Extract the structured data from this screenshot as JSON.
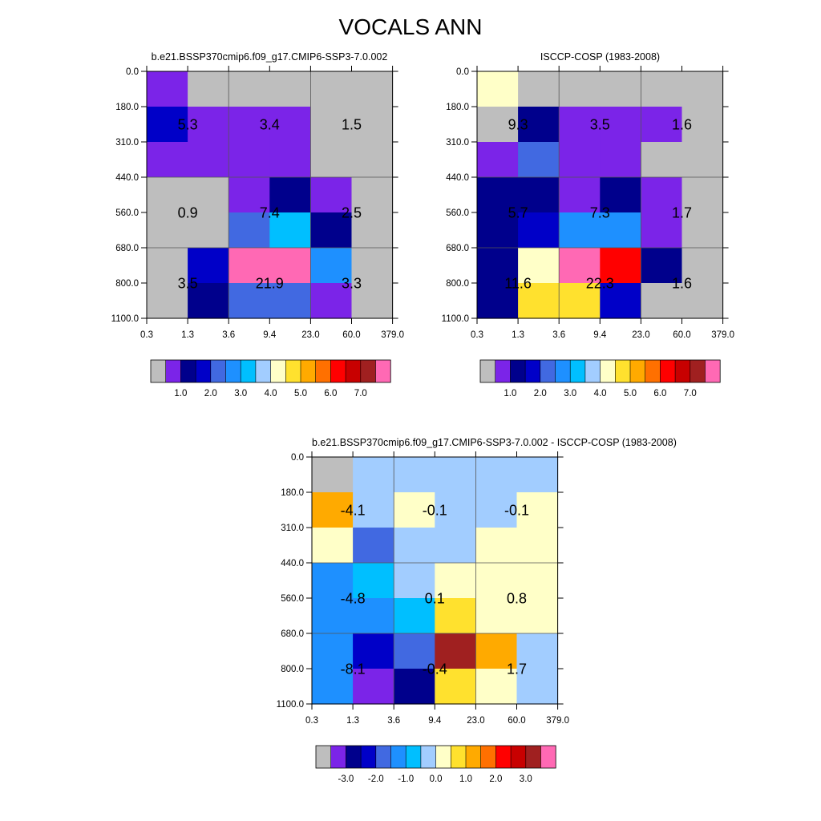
{
  "title": "VOCALS ANN",
  "chart_data": [
    {
      "type": "heatmap",
      "title": "b.e21.BSSP370cmip6.f09_g17.CMIP6-SSP3-7.0.002",
      "x_ticks": [
        "0.3",
        "1.3",
        "3.6",
        "9.4",
        "23.0",
        "60.0",
        "379.0"
      ],
      "y_ticks": [
        "0.0",
        "180.0",
        "310.0",
        "440.0",
        "560.0",
        "680.0",
        "800.0",
        "1100.0"
      ],
      "cells": [
        [
          "#7B24E8",
          "#BEBEBE",
          "#BEBEBE",
          "#BEBEBE",
          "#BEBEBE",
          "#BEBEBE"
        ],
        [
          "#0000C8",
          "#7B24E8",
          "#7B24E8",
          "#7B24E8",
          "#BEBEBE",
          "#BEBEBE"
        ],
        [
          "#7B24E8",
          "#7B24E8",
          "#7B24E8",
          "#7B24E8",
          "#BEBEBE",
          "#BEBEBE"
        ],
        [
          "#BEBEBE",
          "#BEBEBE",
          "#7B24E8",
          "#00008C",
          "#7B24E8",
          "#BEBEBE"
        ],
        [
          "#BEBEBE",
          "#BEBEBE",
          "#4169E1",
          "#00BFFF",
          "#00008C",
          "#BEBEBE"
        ],
        [
          "#BEBEBE",
          "#0000C8",
          "#FF69B4",
          "#FF69B4",
          "#1E90FF",
          "#BEBEBE"
        ],
        [
          "#BEBEBE",
          "#00008C",
          "#4169E1",
          "#4169E1",
          "#7B24E8",
          "#BEBEBE"
        ]
      ],
      "box_values": [
        [
          "",
          "",
          ""
        ],
        [
          "5.3",
          "3.4",
          "1.5"
        ],
        [
          "0.9",
          "7.4",
          "2.5"
        ],
        [
          "3.5",
          "21.9",
          "3.3"
        ]
      ],
      "colorbar": {
        "colors": [
          "#BEBEBE",
          "#7B24E8",
          "#00008C",
          "#0000C8",
          "#4169E1",
          "#1E90FF",
          "#00BFFF",
          "#A2CDFF",
          "#FFFFC8",
          "#FFE12E",
          "#FFAA00",
          "#FF7000",
          "#FF0000",
          "#C80000",
          "#A02020",
          "#FF69B4"
        ],
        "labels": [
          "1.0",
          "2.0",
          "3.0",
          "4.0",
          "5.0",
          "6.0",
          "7.0"
        ]
      }
    },
    {
      "type": "heatmap",
      "title": "ISCCP-COSP (1983-2008)",
      "x_ticks": [
        "0.3",
        "1.3",
        "3.6",
        "9.4",
        "23.0",
        "60.0",
        "379.0"
      ],
      "y_ticks": [
        "0.0",
        "180.0",
        "310.0",
        "440.0",
        "560.0",
        "680.0",
        "800.0",
        "1100.0"
      ],
      "cells": [
        [
          "#FFFFC8",
          "#BEBEBE",
          "#BEBEBE",
          "#BEBEBE",
          "#BEBEBE",
          "#BEBEBE"
        ],
        [
          "#BEBEBE",
          "#00008C",
          "#7B24E8",
          "#7B24E8",
          "#7B24E8",
          "#BEBEBE"
        ],
        [
          "#7B24E8",
          "#4169E1",
          "#7B24E8",
          "#7B24E8",
          "#BEBEBE",
          "#BEBEBE"
        ],
        [
          "#00008C",
          "#00008C",
          "#7B24E8",
          "#00008C",
          "#7B24E8",
          "#BEBEBE"
        ],
        [
          "#00008C",
          "#0000C8",
          "#1E90FF",
          "#1E90FF",
          "#7B24E8",
          "#BEBEBE"
        ],
        [
          "#00008C",
          "#FFFFC8",
          "#FF69B4",
          "#FF0000",
          "#00008C",
          "#BEBEBE"
        ],
        [
          "#00008C",
          "#FFE12E",
          "#FFE12E",
          "#0000C8",
          "#BEBEBE",
          "#BEBEBE"
        ]
      ],
      "box_values": [
        [
          "",
          "",
          ""
        ],
        [
          "9.3",
          "3.5",
          "1.6"
        ],
        [
          "5.7",
          "7.3",
          "1.7"
        ],
        [
          "11.6",
          "22.3",
          "1.6"
        ]
      ],
      "colorbar": {
        "colors": [
          "#BEBEBE",
          "#7B24E8",
          "#00008C",
          "#0000C8",
          "#4169E1",
          "#1E90FF",
          "#00BFFF",
          "#A2CDFF",
          "#FFFFC8",
          "#FFE12E",
          "#FFAA00",
          "#FF7000",
          "#FF0000",
          "#C80000",
          "#A02020",
          "#FF69B4"
        ],
        "labels": [
          "1.0",
          "2.0",
          "3.0",
          "4.0",
          "5.0",
          "6.0",
          "7.0"
        ]
      }
    },
    {
      "type": "heatmap",
      "title": "b.e21.BSSP370cmip6.f09_g17.CMIP6-SSP3-7.0.002 - ISCCP-COSP (1983-2008)",
      "x_ticks": [
        "0.3",
        "1.3",
        "3.6",
        "9.4",
        "23.0",
        "60.0",
        "379.0"
      ],
      "y_ticks": [
        "0.0",
        "180.0",
        "310.0",
        "440.0",
        "560.0",
        "680.0",
        "800.0",
        "1100.0"
      ],
      "cells": [
        [
          "#BEBEBE",
          "#A2CDFF",
          "#A2CDFF",
          "#A2CDFF",
          "#A2CDFF",
          "#A2CDFF"
        ],
        [
          "#FFAA00",
          "#A2CDFF",
          "#FFFFC8",
          "#A2CDFF",
          "#A2CDFF",
          "#FFFFC8"
        ],
        [
          "#FFFFC8",
          "#4169E1",
          "#A2CDFF",
          "#A2CDFF",
          "#FFFFC8",
          "#FFFFC8"
        ],
        [
          "#1E90FF",
          "#00BFFF",
          "#A2CDFF",
          "#FFFFC8",
          "#FFFFC8",
          "#FFFFC8"
        ],
        [
          "#1E90FF",
          "#1E90FF",
          "#00BFFF",
          "#FFE12E",
          "#FFFFC8",
          "#FFFFC8"
        ],
        [
          "#1E90FF",
          "#0000C8",
          "#4169E1",
          "#A02020",
          "#FFAA00",
          "#A2CDFF"
        ],
        [
          "#1E90FF",
          "#7B24E8",
          "#00008C",
          "#FFE12E",
          "#FFFFC8",
          "#A2CDFF"
        ]
      ],
      "box_values": [
        [
          "",
          "",
          ""
        ],
        [
          "-4.1",
          "-0.1",
          "-0.1"
        ],
        [
          "-4.8",
          "0.1",
          "0.8"
        ],
        [
          "-8.1",
          "-0.4",
          "1.7"
        ]
      ],
      "colorbar": {
        "colors": [
          "#BEBEBE",
          "#7B24E8",
          "#00008C",
          "#0000C8",
          "#4169E1",
          "#1E90FF",
          "#00BFFF",
          "#A2CDFF",
          "#FFFFC8",
          "#FFE12E",
          "#FFAA00",
          "#FF7000",
          "#FF0000",
          "#C80000",
          "#A02020",
          "#FF69B4"
        ],
        "labels": [
          "-3.0",
          "-2.0",
          "-1.0",
          "0.0",
          "1.0",
          "2.0",
          "3.0"
        ]
      }
    }
  ]
}
